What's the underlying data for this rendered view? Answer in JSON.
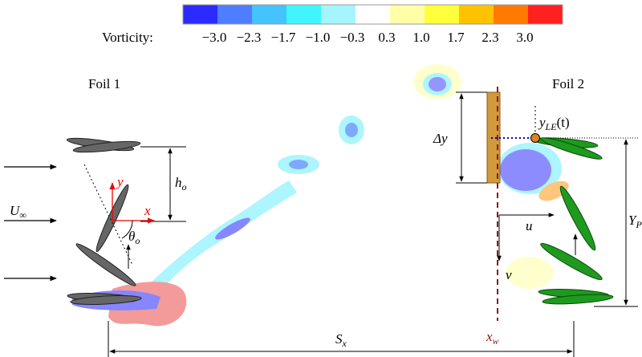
{
  "colorbar": {
    "label": "Vorticity:",
    "colors": [
      "#2b2bff",
      "#4f7dff",
      "#45c3ff",
      "#40f5ff",
      "#a5f5ff",
      "#ffffff",
      "#ffffa8",
      "#ffff3c",
      "#ffc200",
      "#ff7a00",
      "#ff2020"
    ],
    "ticks": [
      "−3.0",
      "−2.3",
      "−1.7",
      "−1.0",
      "−0.3",
      "0.3",
      "1.0",
      "1.7",
      "2.3",
      "3.0"
    ]
  },
  "foil1": {
    "title": "Foil 1",
    "h": {
      "main": "h",
      "sub": "o"
    },
    "theta": {
      "main": "θ",
      "sub": "o"
    },
    "u_inf": {
      "main": "U",
      "sub": "∞"
    },
    "x": "x",
    "y": "y"
  },
  "foil2": {
    "title": "Foil 2",
    "dy": "Δy",
    "yle": {
      "main": "y",
      "sub": "LE",
      "tail": "(t)"
    },
    "u": "u",
    "v": "v",
    "yp": {
      "main": "Y",
      "sub": "P"
    }
  },
  "sx": {
    "main": "S",
    "sub": "x"
  },
  "xw": {
    "main": "x",
    "sub": "w"
  }
}
